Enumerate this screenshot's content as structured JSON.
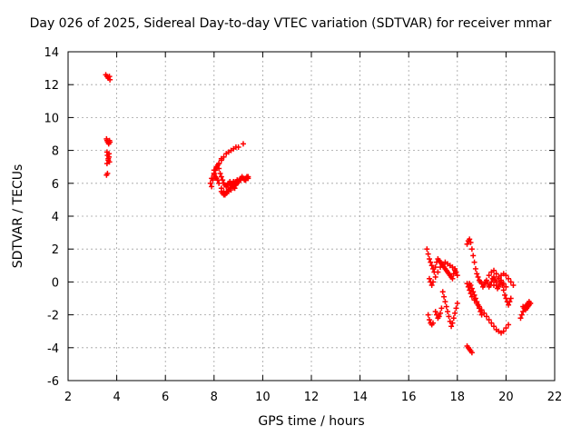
{
  "chart_data": {
    "type": "scatter",
    "title": "Day 026 of 2025, Sidereal Day-to-day VTEC variation (SDTVAR) for receiver mmar",
    "xlabel": "GPS time / hours",
    "ylabel": "SDTVAR / TECUs",
    "xlim": [
      2,
      22
    ],
    "ylim": [
      -6,
      14
    ],
    "xticks": [
      2,
      4,
      6,
      8,
      10,
      12,
      14,
      16,
      18,
      20,
      22
    ],
    "yticks": [
      -6,
      -4,
      -2,
      0,
      2,
      4,
      6,
      8,
      10,
      12,
      14
    ],
    "grid": true,
    "marker": "+",
    "color": "#ff0000",
    "series": [
      {
        "name": "SDTVAR",
        "x": [
          3.55,
          3.6,
          3.65,
          3.7,
          3.72,
          3.58,
          3.6,
          3.63,
          3.67,
          3.7,
          3.72,
          3.6,
          3.62,
          3.65,
          3.68,
          3.7,
          3.6,
          3.65,
          3.68,
          3.58,
          3.62,
          7.9,
          7.95,
          8.0,
          8.05,
          8.1,
          8.15,
          8.2,
          8.25,
          8.3,
          8.35,
          8.4,
          8.45,
          8.5,
          8.55,
          8.6,
          8.65,
          8.7,
          8.75,
          8.8,
          8.85,
          8.9,
          8.95,
          9.0,
          9.05,
          9.1,
          9.15,
          9.2,
          9.25,
          9.3,
          9.35,
          9.4,
          8.0,
          8.05,
          8.1,
          8.15,
          8.2,
          8.3,
          8.4,
          8.5,
          8.6,
          8.7,
          8.8,
          8.9,
          9.0,
          9.1,
          9.2,
          9.3,
          9.35,
          9.4,
          8.0,
          8.1,
          8.2,
          8.3,
          8.4,
          8.6,
          8.8,
          9.0,
          9.2,
          7.85,
          7.9,
          8.0,
          8.1,
          8.2,
          8.3,
          8.5,
          8.7,
          8.9,
          8.3,
          8.35,
          8.4,
          8.45,
          8.5,
          8.55,
          8.6,
          8.65,
          8.7,
          8.75,
          8.8,
          8.85,
          8.9,
          8.95,
          9.0,
          16.75,
          16.8,
          16.85,
          16.9,
          16.95,
          17.0,
          17.05,
          17.1,
          17.15,
          17.2,
          17.25,
          17.3,
          17.35,
          17.4,
          17.45,
          17.5,
          17.55,
          17.6,
          17.65,
          17.7,
          17.75,
          17.8,
          17.85,
          17.9,
          17.95,
          18.0,
          16.85,
          16.9,
          16.95,
          17.0,
          17.1,
          17.2,
          17.3,
          17.4,
          17.5,
          17.6,
          17.7,
          17.8,
          17.9,
          17.4,
          17.45,
          17.5,
          17.55,
          17.6,
          17.65,
          17.7,
          17.75,
          17.8,
          17.85,
          17.9,
          17.95,
          18.0,
          17.35,
          17.3,
          17.25,
          17.2,
          17.15,
          17.1,
          16.8,
          16.85,
          16.9,
          16.95,
          17.0,
          18.4,
          18.45,
          18.5,
          18.55,
          18.6,
          18.65,
          18.7,
          18.75,
          18.8,
          18.85,
          18.9,
          18.95,
          19.0,
          19.05,
          19.1,
          19.15,
          19.2,
          19.25,
          19.3,
          19.35,
          19.4,
          19.45,
          19.5,
          19.55,
          19.6,
          19.65,
          19.7,
          19.75,
          19.8,
          19.85,
          19.9,
          19.95,
          20.0,
          20.05,
          20.1,
          20.15,
          20.2,
          18.5,
          18.55,
          18.6,
          18.65,
          18.7,
          18.75,
          18.8,
          18.85,
          18.9,
          18.95,
          19.0,
          18.4,
          18.45,
          18.5,
          18.55,
          18.6,
          18.7,
          18.8,
          18.9,
          19.0,
          19.1,
          19.2,
          19.3,
          19.4,
          19.5,
          19.6,
          19.7,
          19.8,
          19.9,
          20.0,
          20.1,
          19.3,
          19.4,
          19.5,
          19.6,
          19.7,
          19.8,
          19.9,
          20.0,
          19.5,
          19.6,
          19.7,
          19.8,
          19.9,
          20.0,
          20.1,
          20.2,
          20.3,
          20.6,
          20.65,
          20.7,
          20.75,
          20.8,
          20.85,
          20.9,
          20.95,
          21.0,
          20.7,
          20.75,
          20.8,
          20.85,
          20.9,
          20.95,
          21.0,
          18.4,
          18.45,
          18.5,
          18.55,
          18.6
        ],
        "y": [
          12.6,
          12.5,
          12.4,
          12.5,
          12.3,
          8.7,
          8.6,
          8.5,
          8.4,
          8.6,
          8.5,
          7.9,
          7.7,
          7.5,
          7.6,
          7.3,
          7.2,
          7.4,
          7.8,
          6.5,
          6.6,
          5.8,
          6.2,
          6.6,
          6.8,
          7.0,
          7.1,
          6.9,
          6.6,
          6.4,
          6.2,
          6.0,
          5.9,
          5.8,
          5.9,
          6.0,
          6.1,
          6.0,
          5.9,
          5.8,
          5.7,
          5.9,
          6.0,
          6.1,
          6.2,
          6.3,
          6.4,
          6.3,
          6.2,
          6.3,
          6.4,
          6.3,
          6.5,
          6.4,
          6.3,
          6.2,
          6.0,
          5.7,
          5.5,
          5.4,
          5.5,
          5.6,
          5.8,
          6.0,
          6.1,
          6.2,
          6.3,
          6.2,
          6.3,
          6.4,
          6.8,
          7.0,
          7.2,
          7.4,
          7.6,
          7.9,
          8.1,
          8.2,
          8.4,
          6.0,
          6.3,
          6.6,
          6.9,
          7.2,
          7.5,
          7.8,
          8.0,
          8.2,
          5.5,
          5.4,
          5.3,
          5.3,
          5.4,
          5.5,
          5.6,
          5.7,
          5.9,
          6.0,
          6.1,
          6.0,
          6.1,
          6.2,
          6.1,
          2.0,
          1.7,
          1.4,
          1.2,
          1.0,
          0.8,
          0.6,
          0.9,
          1.2,
          1.4,
          1.3,
          1.2,
          1.1,
          1.0,
          0.9,
          0.8,
          0.7,
          0.6,
          0.5,
          0.4,
          0.3,
          0.2,
          0.5,
          0.8,
          0.6,
          0.4,
          0.2,
          0.0,
          -0.2,
          0.0,
          0.3,
          0.6,
          0.9,
          1.1,
          1.2,
          1.1,
          1.0,
          0.9,
          0.7,
          -0.6,
          -0.9,
          -1.2,
          -1.5,
          -1.8,
          -2.1,
          -2.4,
          -2.7,
          -2.5,
          -2.2,
          -1.9,
          -1.6,
          -1.3,
          -1.6,
          -1.9,
          -2.1,
          -2.2,
          -2.0,
          -1.8,
          -2.0,
          -2.3,
          -2.5,
          -2.6,
          -2.5,
          2.3,
          2.5,
          2.6,
          2.4,
          2.0,
          1.6,
          1.2,
          0.8,
          0.5,
          0.3,
          0.1,
          0.0,
          -0.1,
          -0.3,
          -0.2,
          0.0,
          0.1,
          -0.1,
          -0.3,
          -0.2,
          0.0,
          0.2,
          0.3,
          0.1,
          -0.2,
          -0.4,
          -0.3,
          -0.1,
          0.0,
          -0.2,
          -0.5,
          -0.8,
          -1.0,
          -1.2,
          -1.4,
          -1.2,
          -1.0,
          -0.1,
          -0.2,
          -0.4,
          -0.6,
          -0.8,
          -1.0,
          -1.2,
          -1.4,
          -1.6,
          -1.8,
          -2.0,
          -0.1,
          -0.3,
          -0.5,
          -0.7,
          -0.9,
          -1.1,
          -1.3,
          -1.5,
          -1.7,
          -1.9,
          -2.1,
          -2.3,
          -2.5,
          -2.7,
          -2.9,
          -3.0,
          -3.1,
          -3.0,
          -2.8,
          -2.6,
          0.4,
          0.6,
          0.7,
          0.5,
          0.3,
          0.1,
          -0.1,
          -0.3,
          -0.2,
          0.0,
          0.2,
          0.4,
          0.5,
          0.4,
          0.2,
          0.0,
          -0.2,
          -2.2,
          -2.0,
          -1.8,
          -1.6,
          -1.5,
          -1.4,
          -1.3,
          -1.2,
          -1.3,
          -1.5,
          -1.6,
          -1.7,
          -1.6,
          -1.5,
          -1.4,
          -1.3,
          -3.9,
          -4.0,
          -4.1,
          -4.2,
          -4.3
        ]
      }
    ]
  }
}
